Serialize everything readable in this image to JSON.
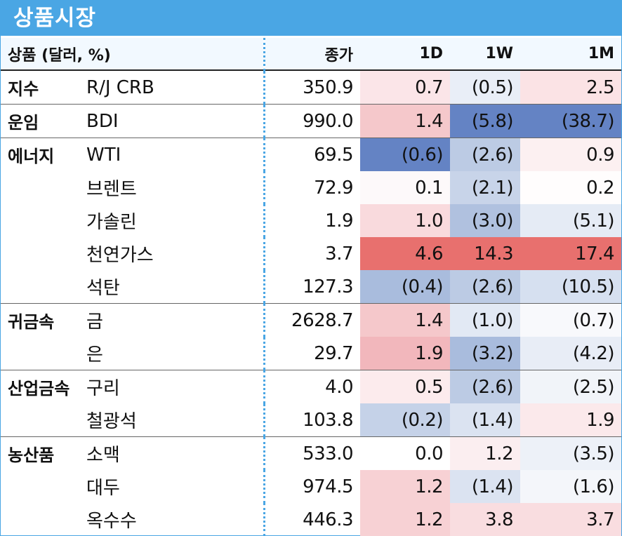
{
  "title": "상품시장",
  "header": {
    "category": "상품 (달러, %)",
    "close": "종가",
    "d1": "1D",
    "w1": "1W",
    "m1": "1M"
  },
  "rows": [
    {
      "cat": "지수",
      "item": "R/J CRB",
      "close": "350.9",
      "d1": "0.7",
      "w1": "(0.5)",
      "m1": "2.5",
      "d1c": "#fbe5e8",
      "w1c": "#e9eef7",
      "m1c": "#fbe3e5"
    },
    {
      "cat": "운임",
      "item": "BDI",
      "close": "990.0",
      "d1": "1.4",
      "w1": "(5.8)",
      "m1": "(38.7)",
      "d1c": "#f5c8cb",
      "w1c": "#6483c4",
      "m1c": "#6483c4"
    },
    {
      "cat": "에너지",
      "item": "WTI",
      "close": "69.5",
      "d1": "(0.6)",
      "w1": "(2.6)",
      "m1": "0.9",
      "d1c": "#6483c4",
      "w1c": "#bccbe4",
      "m1c": "#fcf0f1"
    },
    {
      "cat": "",
      "item": "브렌트",
      "close": "72.9",
      "d1": "0.1",
      "w1": "(2.1)",
      "m1": "0.2",
      "d1c": "#fdf9fa",
      "w1c": "#c8d4e9",
      "m1c": "#fffdfd"
    },
    {
      "cat": "",
      "item": "가솔린",
      "close": "1.9",
      "d1": "1.0",
      "w1": "(3.0)",
      "m1": "(5.1)",
      "d1c": "#f9dadd",
      "w1c": "#b0c1df",
      "m1c": "#e5ebf5"
    },
    {
      "cat": "",
      "item": "천연가스",
      "close": "3.7",
      "d1": "4.6",
      "w1": "14.3",
      "m1": "17.4",
      "d1c": "#e8706e",
      "w1c": "#e8706e",
      "m1c": "#e8706e"
    },
    {
      "cat": "",
      "item": "석탄",
      "close": "127.3",
      "d1": "(0.4)",
      "w1": "(2.6)",
      "m1": "(10.5)",
      "d1c": "#a9bcdd",
      "w1c": "#bccbe4",
      "m1c": "#d6e0f0"
    },
    {
      "cat": "귀금속",
      "item": "금",
      "close": "2628.7",
      "d1": "1.4",
      "w1": "(1.0)",
      "m1": "(0.7)",
      "d1c": "#f5c8cb",
      "w1c": "#e2e9f4",
      "m1c": "#f8f9fc"
    },
    {
      "cat": "",
      "item": "은",
      "close": "29.7",
      "d1": "1.9",
      "w1": "(3.2)",
      "m1": "(4.2)",
      "d1c": "#f2b7bc",
      "w1c": "#a9bcdd",
      "m1c": "#e8edf6"
    },
    {
      "cat": "산업금속",
      "item": "구리",
      "close": "4.0",
      "d1": "0.5",
      "w1": "(2.6)",
      "m1": "(2.5)",
      "d1c": "#fcebed",
      "w1c": "#bccbe4",
      "m1c": "#f1f4f9"
    },
    {
      "cat": "",
      "item": "철광석",
      "close": "103.8",
      "d1": "(0.2)",
      "w1": "(1.4)",
      "m1": "1.9",
      "d1c": "#c5d2e8",
      "w1c": "#dbe3f1",
      "m1c": "#fbe9eb"
    },
    {
      "cat": "농산품",
      "item": "소맥",
      "close": "533.0",
      "d1": "0.0",
      "w1": "1.2",
      "m1": "(3.5)",
      "d1c": "#ffffff",
      "w1c": "#fbeef0",
      "m1c": "#edf1f8"
    },
    {
      "cat": "",
      "item": "대두",
      "close": "974.5",
      "d1": "1.2",
      "w1": "(1.4)",
      "m1": "(1.6)",
      "d1c": "#f7d1d4",
      "w1c": "#dbe3f1",
      "m1c": "#f4f6fa"
    },
    {
      "cat": "",
      "item": "옥수수",
      "close": "446.3",
      "d1": "1.2",
      "w1": "3.8",
      "m1": "3.7",
      "d1c": "#f7d1d4",
      "w1c": "#f9dde0",
      "m1c": "#f9dde0"
    }
  ]
}
